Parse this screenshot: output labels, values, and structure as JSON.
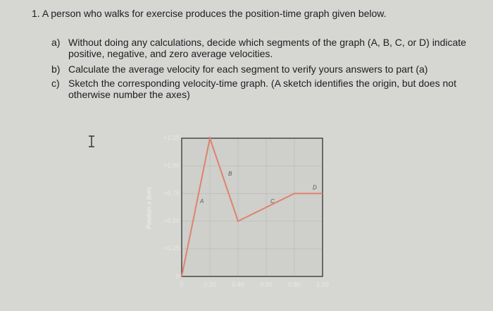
{
  "question": {
    "number": "1.",
    "text": "A person who walks for exercise produces the position-time graph given below."
  },
  "parts": [
    {
      "label": "a)",
      "lines": [
        "Without doing any calculations, decide which segments of the graph (A, B, C, or D) indicate",
        "positive, negative, and zero average velocities."
      ]
    },
    {
      "label": "b)",
      "lines": [
        "Calculate the average velocity for each segment to verify yours answers to part (a)"
      ]
    },
    {
      "label": "c)",
      "lines": [
        "Sketch the corresponding velocity-time graph. (A sketch identifies the origin, but does not",
        "otherwise number the axes)"
      ]
    }
  ],
  "chart_data": {
    "type": "line",
    "y_label": "Position x (km)",
    "x": [
      0,
      0.2,
      0.4,
      0.8,
      1.0
    ],
    "series": [
      {
        "values": [
          0,
          1.25,
          0.5,
          0.75,
          0.75
        ],
        "color": "#e0826c"
      }
    ],
    "segment_labels": [
      "A",
      "B",
      "C",
      "D"
    ],
    "xlim": [
      0,
      1
    ],
    "ylim": [
      0,
      1.25
    ],
    "xticks": [
      0,
      {
        "value": 0.2,
        "label": "0.20"
      },
      {
        "value": 0.4,
        "label": "0.40"
      },
      {
        "value": 0.6,
        "label": "0.60"
      },
      {
        "value": 0.8,
        "label": "0.80"
      },
      {
        "value": 1,
        "label": "1.00"
      }
    ],
    "yticks": [
      0,
      {
        "value": 0.25,
        "label": "+0.25"
      },
      {
        "value": 0.5,
        "label": "+0.50"
      },
      {
        "value": 0.75,
        "label": "+0.75"
      },
      {
        "value": 1,
        "label": "+1.00"
      },
      {
        "value": 1.25,
        "label": "+1.25"
      }
    ],
    "grid": true
  }
}
